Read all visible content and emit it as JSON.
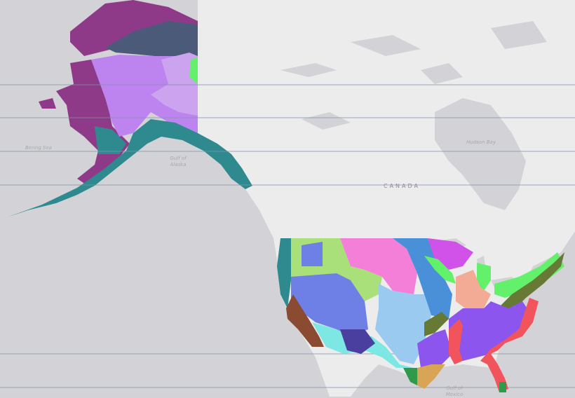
{
  "map": {
    "labels": {
      "bering_sea": "Bering Sea",
      "gulf_of_alaska": "Gulf of\nAlaska",
      "hudson_bay": "Hudson Bay",
      "canada": "CANADA",
      "gulf_of_mexico": "Gulf of\nMexico"
    },
    "colors": {
      "water": "#d3d3d7",
      "land": "#ececec",
      "graticule": "#7f93a6",
      "alaska_tundra": "#8e3a88",
      "alaska_arctic": "#4b5a78",
      "alaska_interior": "#bd84ef",
      "alaska_interior_light": "#cba3ee",
      "alaska_coastal": "#2e8a8e",
      "pacific_coast": "#2e8a8e",
      "great_basin": "#6e7fe6",
      "northern_plains_green": "#a9e07a",
      "great_plains_pink": "#f47fd8",
      "central_plains_blue": "#4a90d8",
      "southern_plains": "#9bcaf0",
      "southwest_desert": "#7de8e3",
      "california": "#8b4a32",
      "great_lakes_magenta": "#d052e8",
      "northeast_green": "#63f06b",
      "appalachian": "#667a35",
      "southeast_purple": "#8b55ee",
      "coastal_red": "#f2545e",
      "gulf_tan": "#d8a455",
      "midwest_salmon": "#f4ab96"
    }
  }
}
